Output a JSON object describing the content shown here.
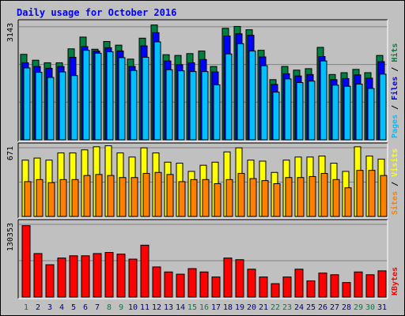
{
  "title": "Daily usage for October 2016",
  "colors": {
    "hits": "#008040",
    "files": "#0000ff",
    "pages": "#00c0ff",
    "visits": "#ffff00",
    "sites": "#ff8000",
    "kbytes": "#ff0000",
    "title": "#0000ff",
    "weekend_day": "#008040",
    "weekday_day": "#000080"
  },
  "chart_data": [
    {
      "type": "bar",
      "name": "hits-files-pages",
      "y_max_label": "3143",
      "ylim": [
        0,
        3143
      ],
      "legend": [
        "Pages",
        "Files",
        "Hits"
      ],
      "categories": [
        "1",
        "2",
        "3",
        "4",
        "5",
        "6",
        "7",
        "8",
        "9",
        "10",
        "11",
        "12",
        "13",
        "14",
        "15",
        "16",
        "17",
        "18",
        "19",
        "20",
        "21",
        "22",
        "23",
        "24",
        "25",
        "26",
        "27",
        "28",
        "29",
        "30",
        "31"
      ],
      "series": [
        {
          "name": "Hits",
          "values": [
            2330,
            2170,
            2100,
            2100,
            2480,
            2800,
            2470,
            2680,
            2580,
            2200,
            2770,
            3130,
            2320,
            2300,
            2350,
            2420,
            2000,
            3040,
            3090,
            3000,
            2440,
            1640,
            2000,
            1900,
            1940,
            2520,
            1780,
            1830,
            1920,
            1830,
            2300
          ]
        },
        {
          "name": "Files",
          "values": [
            2100,
            2000,
            1950,
            2000,
            2250,
            2540,
            2420,
            2510,
            2420,
            2000,
            2560,
            2920,
            2150,
            2050,
            2100,
            2190,
            1850,
            2830,
            2890,
            2850,
            2260,
            1510,
            1800,
            1740,
            1780,
            2270,
            1640,
            1670,
            1770,
            1680,
            2130
          ]
        },
        {
          "name": "Pages",
          "values": [
            1960,
            1840,
            1700,
            1850,
            1750,
            2440,
            2360,
            2400,
            2240,
            1890,
            2250,
            2670,
            1910,
            1880,
            1860,
            1860,
            1500,
            2340,
            2620,
            2420,
            2020,
            1300,
            1660,
            1560,
            1600,
            2150,
            1490,
            1460,
            1520,
            1400,
            1790
          ]
        }
      ]
    },
    {
      "type": "bar",
      "name": "visits-sites",
      "y_max_label": "671",
      "ylim": [
        0,
        671
      ],
      "legend": [
        "Sites",
        "Visits"
      ],
      "categories": [
        "1",
        "2",
        "3",
        "4",
        "5",
        "6",
        "7",
        "8",
        "9",
        "10",
        "11",
        "12",
        "13",
        "14",
        "15",
        "16",
        "17",
        "18",
        "19",
        "20",
        "21",
        "22",
        "23",
        "24",
        "25",
        "26",
        "27",
        "28",
        "29",
        "30",
        "31"
      ],
      "series": [
        {
          "name": "Visits",
          "values": [
            550,
            570,
            550,
            620,
            620,
            650,
            680,
            690,
            620,
            580,
            670,
            620,
            530,
            520,
            440,
            500,
            530,
            630,
            670,
            550,
            540,
            430,
            550,
            580,
            580,
            590,
            520,
            440,
            680,
            590,
            560
          ]
        },
        {
          "name": "Sites",
          "values": [
            340,
            360,
            330,
            360,
            360,
            400,
            410,
            400,
            380,
            380,
            420,
            430,
            410,
            340,
            360,
            360,
            320,
            360,
            420,
            370,
            350,
            320,
            380,
            380,
            390,
            420,
            360,
            280,
            450,
            450,
            400
          ]
        }
      ]
    },
    {
      "type": "bar",
      "name": "kbytes",
      "y_max_label": "130353",
      "ylim": [
        0,
        130353
      ],
      "legend": [
        "KBytes"
      ],
      "categories": [
        "1",
        "2",
        "3",
        "4",
        "5",
        "6",
        "7",
        "8",
        "9",
        "10",
        "11",
        "12",
        "13",
        "14",
        "15",
        "16",
        "17",
        "18",
        "19",
        "20",
        "21",
        "22",
        "23",
        "24",
        "25",
        "26",
        "27",
        "28",
        "29",
        "30",
        "31"
      ],
      "series": [
        {
          "name": "KBytes",
          "values": [
            128000,
            78000,
            58000,
            70000,
            74000,
            74000,
            78000,
            80000,
            77000,
            68000,
            93000,
            54000,
            45000,
            41000,
            51000,
            45000,
            36000,
            70000,
            67000,
            50000,
            36000,
            24000,
            36000,
            50000,
            29000,
            43000,
            40000,
            26000,
            45000,
            40000,
            47000
          ]
        }
      ]
    }
  ],
  "weekend_days": [
    1,
    8,
    9,
    15,
    16,
    22,
    23,
    29,
    30
  ]
}
